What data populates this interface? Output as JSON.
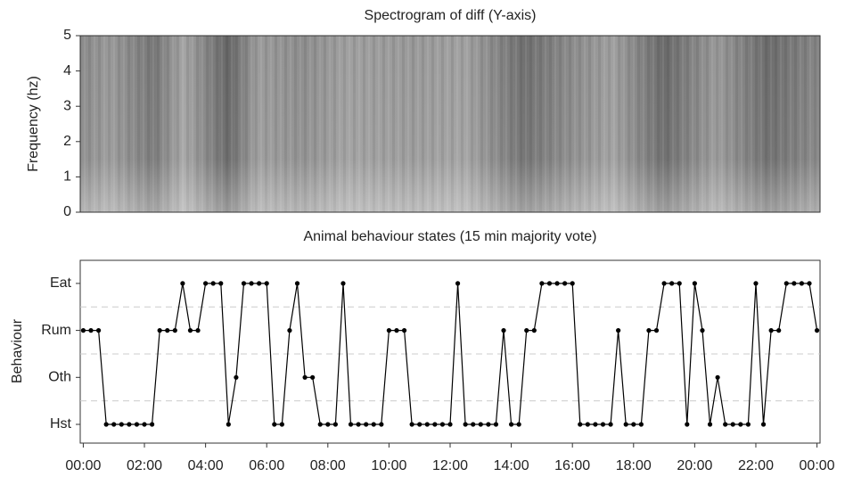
{
  "chart_data": [
    {
      "type": "spectrogram",
      "title": "Spectrogram of diff (Y-axis)",
      "ylabel": "Frequency (hz)",
      "ylim": [
        0,
        5
      ],
      "yticks": [
        0,
        1,
        2,
        3,
        4,
        5
      ]
    },
    {
      "type": "line",
      "title": "Animal behaviour states (15 min majority vote)",
      "ylabel": "Behaviour",
      "ycategories": [
        "Hst",
        "Oth",
        "Rum",
        "Eat"
      ],
      "color": "#000000",
      "xlim": [
        -0.1,
        24.1
      ],
      "xticks": [
        {
          "value": 0,
          "label": "00:00"
        },
        {
          "value": 2,
          "label": "02:00"
        },
        {
          "value": 4,
          "label": "04:00"
        },
        {
          "value": 6,
          "label": "06:00"
        },
        {
          "value": 8,
          "label": "08:00"
        },
        {
          "value": 10,
          "label": "10:00"
        },
        {
          "value": 12,
          "label": "12:00"
        },
        {
          "value": 14,
          "label": "14:00"
        },
        {
          "value": 16,
          "label": "16:00"
        },
        {
          "value": 18,
          "label": "18:00"
        },
        {
          "value": 20,
          "label": "20:00"
        },
        {
          "value": 22,
          "label": "22:00"
        },
        {
          "value": 24,
          "label": "00:00"
        }
      ],
      "x": [
        0,
        0.25,
        0.5,
        0.75,
        1,
        1.25,
        1.5,
        1.75,
        2,
        2.25,
        2.5,
        2.75,
        3,
        3.25,
        3.5,
        3.75,
        4,
        4.25,
        4.5,
        4.75,
        5,
        5.25,
        5.5,
        5.75,
        6,
        6.25,
        6.5,
        6.75,
        7,
        7.25,
        7.5,
        7.75,
        8,
        8.25,
        8.5,
        8.75,
        9,
        9.25,
        9.5,
        9.75,
        10,
        10.25,
        10.5,
        10.75,
        11,
        11.25,
        11.5,
        11.75,
        12,
        12.25,
        12.5,
        12.75,
        13,
        13.25,
        13.5,
        13.75,
        14,
        14.25,
        14.5,
        14.75,
        15,
        15.25,
        15.5,
        15.75,
        16,
        16.25,
        16.5,
        16.75,
        17,
        17.25,
        17.5,
        17.75,
        18,
        18.25,
        18.5,
        18.75,
        19,
        19.25,
        19.5,
        19.75,
        20,
        20.25,
        20.5,
        20.75,
        21,
        21.25,
        21.5,
        21.75,
        22,
        22.25,
        22.5,
        22.75,
        23,
        23.25,
        23.5,
        23.75,
        24
      ],
      "values": [
        "Rum",
        "Rum",
        "Rum",
        "Hst",
        "Hst",
        "Hst",
        "Hst",
        "Hst",
        "Hst",
        "Hst",
        "Rum",
        "Rum",
        "Rum",
        "Eat",
        "Rum",
        "Rum",
        "Eat",
        "Eat",
        "Eat",
        "Hst",
        "Oth",
        "Eat",
        "Eat",
        "Eat",
        "Eat",
        "Hst",
        "Hst",
        "Rum",
        "Eat",
        "Oth",
        "Oth",
        "Hst",
        "Hst",
        "Hst",
        "Eat",
        "Hst",
        "Hst",
        "Hst",
        "Hst",
        "Hst",
        "Rum",
        "Rum",
        "Rum",
        "Hst",
        "Hst",
        "Hst",
        "Hst",
        "Hst",
        "Hst",
        "Eat",
        "Hst",
        "Hst",
        "Hst",
        "Hst",
        "Hst",
        "Rum",
        "Hst",
        "Hst",
        "Rum",
        "Rum",
        "Eat",
        "Eat",
        "Eat",
        "Eat",
        "Eat",
        "Hst",
        "Hst",
        "Hst",
        "Hst",
        "Hst",
        "Rum",
        "Hst",
        "Hst",
        "Hst",
        "Rum",
        "Rum",
        "Eat",
        "Eat",
        "Eat",
        "Hst",
        "Eat",
        "Rum",
        "Hst",
        "Oth",
        "Hst",
        "Hst",
        "Hst",
        "Hst",
        "Eat",
        "Hst",
        "Rum",
        "Rum",
        "Eat",
        "Eat",
        "Eat",
        "Eat",
        "Rum"
      ]
    }
  ]
}
